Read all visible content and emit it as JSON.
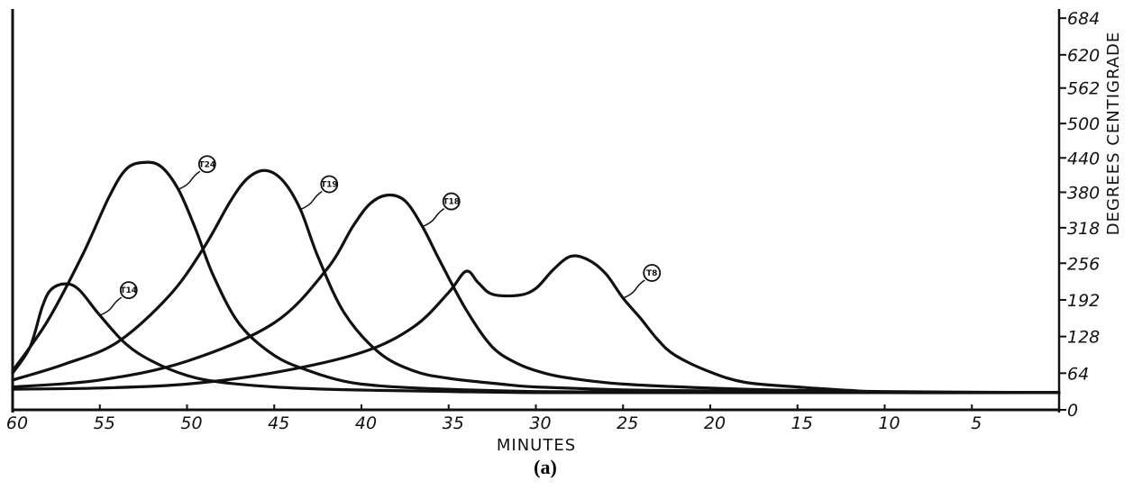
{
  "chart_data": {
    "type": "line",
    "title": "",
    "caption": "(a)",
    "xlabel": "MINUTES",
    "ylabel": "DEGREES CENTIGRADE",
    "xlim": [
      60,
      0
    ],
    "ylim": [
      0,
      700
    ],
    "x_ticks": [
      60,
      55,
      50,
      45,
      40,
      35,
      30,
      25,
      20,
      15,
      10,
      5
    ],
    "y_ticks": [
      0,
      64,
      128,
      192,
      256,
      318,
      380,
      440,
      500,
      562,
      620,
      684
    ],
    "grid": false,
    "legend": "none",
    "line_color": "#111111",
    "series": [
      {
        "name": "T14",
        "x": [
          60,
          59,
          58.3,
          57.8,
          57,
          56.2,
          55,
          53.5,
          52,
          50,
          48,
          45,
          42,
          39,
          35,
          30,
          20,
          10,
          0
        ],
        "y": [
          64,
          110,
          180,
          210,
          220,
          210,
          165,
          115,
          85,
          60,
          48,
          40,
          36,
          34,
          32,
          30,
          30,
          30,
          30
        ]
      },
      {
        "name": "T24",
        "x": [
          60,
          58,
          56,
          54.5,
          53.5,
          52.5,
          51.5,
          50.5,
          49.5,
          48.5,
          47,
          45,
          43,
          41,
          39,
          36,
          33,
          30,
          25,
          20,
          10,
          0
        ],
        "y": [
          68,
          155,
          270,
          370,
          420,
          432,
          425,
          385,
          315,
          235,
          150,
          95,
          68,
          50,
          42,
          37,
          34,
          32,
          31,
          30,
          30,
          30
        ]
      },
      {
        "name": "T19",
        "x": [
          60,
          57,
          54,
          51,
          49,
          47.5,
          46.5,
          45.5,
          44.5,
          43.5,
          42.5,
          41,
          39,
          37,
          35,
          32,
          30,
          25,
          20,
          10,
          0
        ],
        "y": [
          52,
          80,
          118,
          200,
          285,
          365,
          405,
          418,
          400,
          350,
          268,
          170,
          100,
          68,
          55,
          45,
          40,
          35,
          33,
          30,
          30
        ]
      },
      {
        "name": "T18",
        "x": [
          60,
          55,
          50,
          45,
          42,
          40.5,
          39.5,
          38.5,
          37.5,
          36.5,
          35.5,
          34,
          32.5,
          31,
          29.5,
          28,
          25,
          20,
          15,
          10,
          0
        ],
        "y": [
          40,
          52,
          85,
          152,
          245,
          320,
          360,
          375,
          365,
          320,
          260,
          175,
          110,
          80,
          64,
          55,
          45,
          38,
          34,
          32,
          30
        ]
      },
      {
        "name": "T8",
        "x": [
          60,
          55,
          50,
          45,
          40,
          37,
          35,
          34,
          33.3,
          32.5,
          31,
          30,
          29,
          28,
          27,
          26,
          25,
          24,
          23,
          22,
          20,
          18,
          15,
          12,
          10,
          5,
          0
        ],
        "y": [
          36,
          38,
          45,
          65,
          100,
          145,
          205,
          242,
          222,
          202,
          200,
          212,
          245,
          268,
          262,
          238,
          195,
          160,
          122,
          95,
          66,
          48,
          40,
          34,
          31,
          30,
          30
        ]
      }
    ],
    "markers": [
      {
        "label": "T14",
        "series": "T14"
      },
      {
        "label": "T24",
        "series": "T24"
      },
      {
        "label": "T19",
        "series": "T19"
      },
      {
        "label": "T18",
        "series": "T18"
      },
      {
        "label": "T8",
        "series": "T8"
      }
    ]
  }
}
